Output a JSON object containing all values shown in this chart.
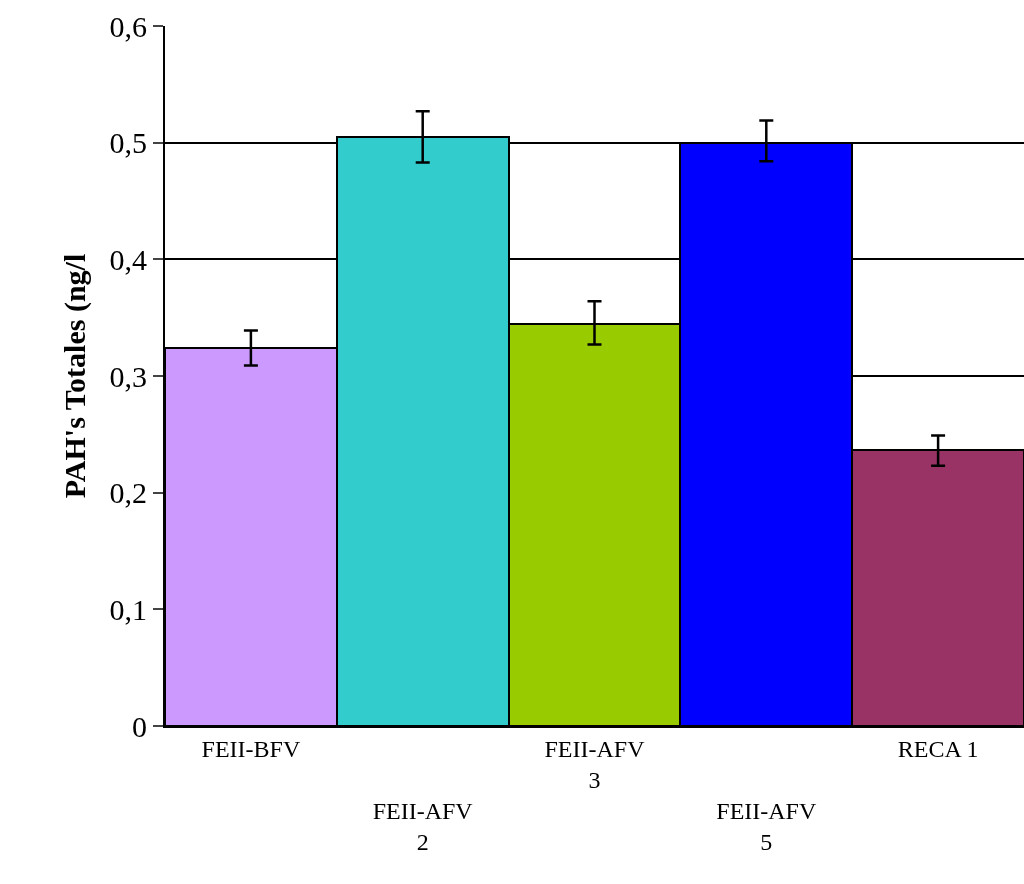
{
  "chart_data": {
    "type": "bar",
    "ylabel": "PAH's Totales (ng/l",
    "categories": [
      "FEII-BFV",
      "FEII-AFV 2",
      "FEII-AFV 3",
      "FEII-AFV 5",
      "RECA 1"
    ],
    "values": [
      0.324,
      0.505,
      0.345,
      0.5,
      0.237
    ],
    "colors": [
      "#cc99ff",
      "#33cccc",
      "#99cc00",
      "#0000ff",
      "#993366"
    ],
    "errors": [
      [
        0.309,
        0.339
      ],
      [
        0.483,
        0.527
      ],
      [
        0.327,
        0.364
      ],
      [
        0.484,
        0.519
      ],
      [
        0.223,
        0.249
      ]
    ],
    "ylim": [
      0,
      0.6
    ],
    "yticks": [
      0,
      {
        "value": 0.1,
        "label": "0,1"
      },
      {
        "value": 0.2,
        "label": "0,2"
      },
      {
        "value": 0.3,
        "label": "0,3"
      },
      {
        "value": 0.4,
        "label": "0,4"
      },
      {
        "value": 0.5,
        "label": "0,5"
      },
      {
        "value": 0.6,
        "label": "0,6"
      }
    ],
    "grid": "y",
    "legend": false
  }
}
